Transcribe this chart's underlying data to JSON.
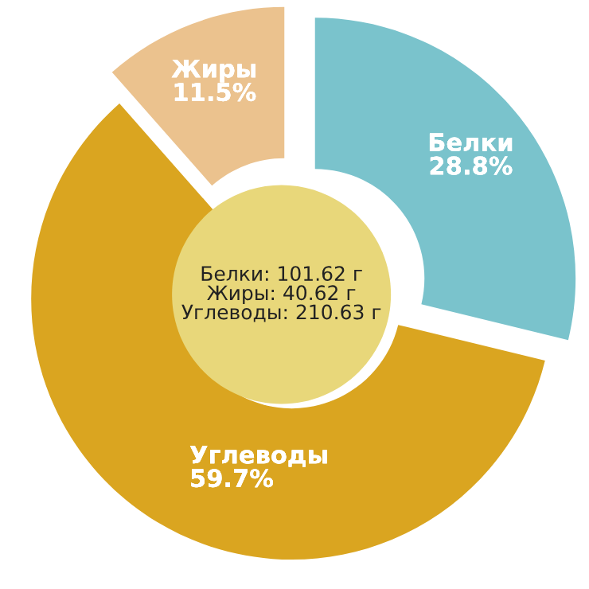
{
  "chart_data": {
    "type": "donut",
    "categories": [
      "Белки",
      "Углеводы",
      "Жиры"
    ],
    "values": [
      28.8,
      59.7,
      11.5
    ],
    "colors": [
      "#7ac3cc",
      "#daa520",
      "#ebc28e"
    ],
    "value_labels": [
      "28.8%",
      "59.7%",
      "11.5%"
    ],
    "annotations": [
      "Белки: 101.62 г\nЖиры: 40.62 г\nУглеводы: 210.63 г"
    ],
    "legend": false
  }
}
